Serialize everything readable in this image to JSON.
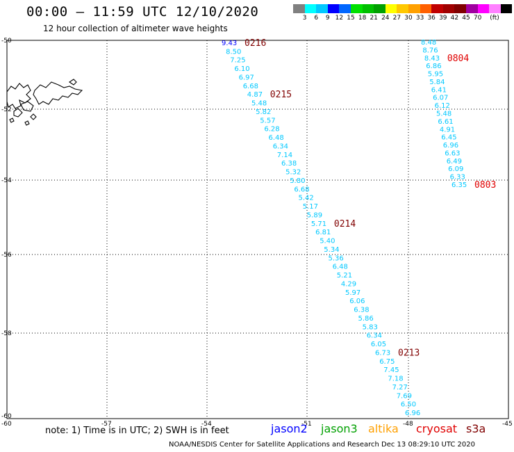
{
  "header": {
    "title": "00:00 – 11:59 UTC 12/10/2020",
    "subtitle": "12 hour collection of altimeter wave heights"
  },
  "color_scale": {
    "colors": [
      "#808080",
      "#00ffff",
      "#00c8ff",
      "#0000ff",
      "#0066ff",
      "#00e000",
      "#00c000",
      "#00a000",
      "#ffff00",
      "#ffc800",
      "#ffa000",
      "#ff6000",
      "#c00000",
      "#a00000",
      "#800000",
      "#a000a0",
      "#ff00ff",
      "#ff80ff",
      "#000000"
    ],
    "labels": [
      "3",
      "6",
      "9",
      "12",
      "15",
      "18",
      "21",
      "24",
      "27",
      "30",
      "33",
      "36",
      "39",
      "42",
      "45",
      "70",
      "(ft)"
    ]
  },
  "map": {
    "lat_labels": [
      "-50",
      "-52",
      "-54",
      "-56",
      "-58",
      "-60"
    ],
    "lon_labels": [
      "-57",
      "-54",
      "-51",
      "-48",
      "-45"
    ],
    "icon": "falkland-islands-coastline"
  },
  "tracks": [
    {
      "color": "#00c8ff",
      "values": [
        "9.43",
        "8.50",
        "7.25",
        "6.10",
        "6.97",
        "6.68",
        "4.87",
        "5.48",
        "5.82",
        "5.57",
        "6.28",
        "6.48",
        "6.34",
        "7.14",
        "6.38",
        "5.32",
        "5.80",
        "6.68",
        "5.42",
        "5.17",
        "5.89",
        "5.71",
        "6.81",
        "5.40",
        "5.34",
        "5.36",
        "6.48",
        "5.21",
        "4.29",
        "5.97",
        "6.06",
        "6.38",
        "5.86",
        "5.83",
        "6.34",
        "6.05",
        "6.73",
        "6.75",
        "7.45",
        "7.18",
        "7.27",
        "7.69",
        "6.50",
        "6.96"
      ],
      "passes": [
        {
          "label": "0216",
          "color": "#800000",
          "at": 0
        },
        {
          "label": "0215",
          "color": "#800000",
          "at": 6
        },
        {
          "label": "0214",
          "color": "#800000",
          "at": 21
        },
        {
          "label": "0213",
          "color": "#800000",
          "at": 36
        }
      ]
    },
    {
      "color": "#00c8ff",
      "values": [
        "8.48",
        "8.76",
        "8.43",
        "6.86",
        "5.95",
        "5.84",
        "6.41",
        "6.07",
        "6.12",
        "5.48",
        "6.61",
        "4.91",
        "6.45",
        "6.96",
        "6.63",
        "6.49",
        "6.09",
        "6.33",
        "6.35"
      ],
      "passes": [
        {
          "label": "0804",
          "color": "#e00000",
          "at": 2
        },
        {
          "label": "0803",
          "color": "#e00000",
          "at": 18
        }
      ]
    }
  ],
  "footer": {
    "note": "note:  1)  Time is in UTC;  2)  SWH is in feet",
    "satellites": [
      {
        "name": "jason2",
        "color": "#0000ff"
      },
      {
        "name": "jason3",
        "color": "#00a000"
      },
      {
        "name": "altika",
        "color": "#ffa000"
      },
      {
        "name": "cryosat",
        "color": "#e00000"
      },
      {
        "name": "s3a",
        "color": "#800000"
      }
    ],
    "credit": "NOAA/NESDIS Center for Satellite Applications and Research     Dec 13 08:29:10 UTC 2020"
  }
}
